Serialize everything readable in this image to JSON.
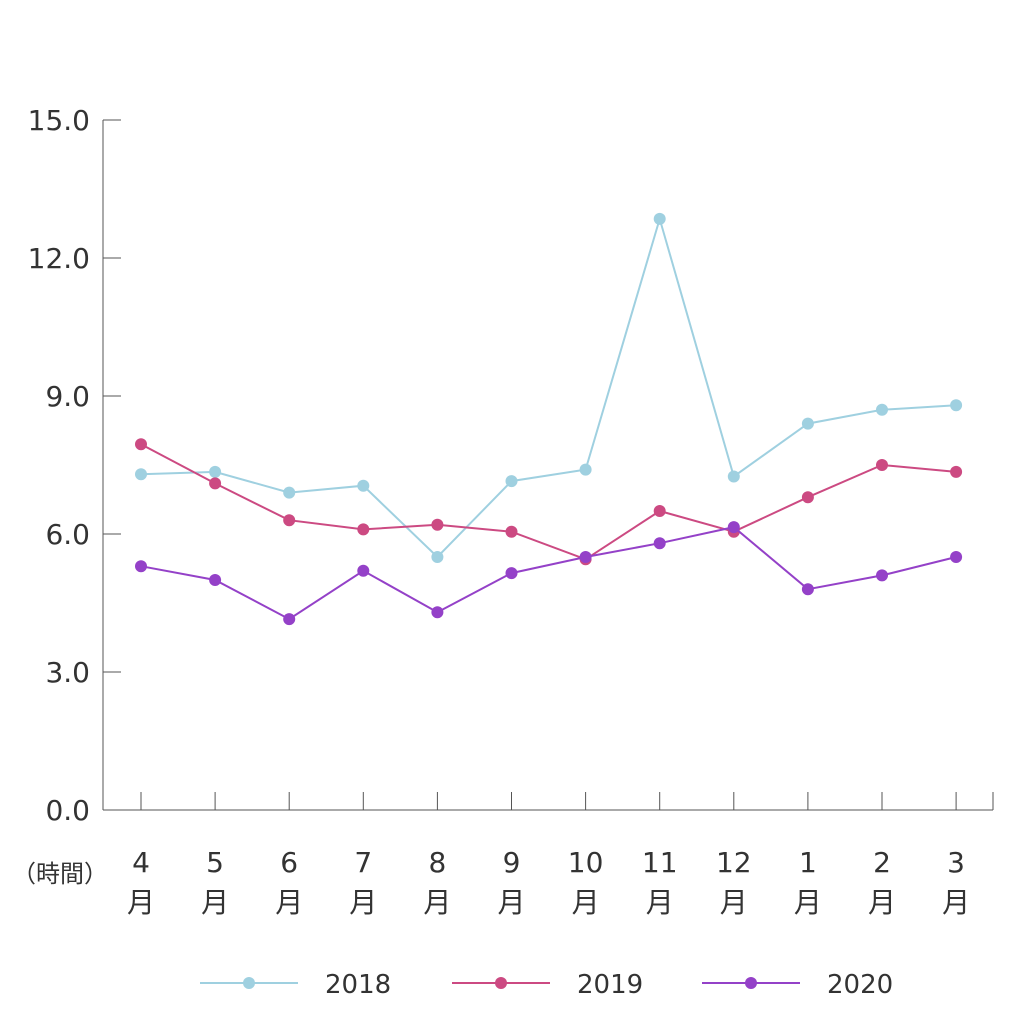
{
  "chart_data": {
    "type": "line",
    "unit_label": "（時間）",
    "categories": [
      {
        "num": "4",
        "suffix": "月"
      },
      {
        "num": "5",
        "suffix": "月"
      },
      {
        "num": "6",
        "suffix": "月"
      },
      {
        "num": "7",
        "suffix": "月"
      },
      {
        "num": "8",
        "suffix": "月"
      },
      {
        "num": "9",
        "suffix": "月"
      },
      {
        "num": "10",
        "suffix": "月"
      },
      {
        "num": "11",
        "suffix": "月"
      },
      {
        "num": "12",
        "suffix": "月"
      },
      {
        "num": "1",
        "suffix": "月"
      },
      {
        "num": "2",
        "suffix": "月"
      },
      {
        "num": "3",
        "suffix": "月"
      }
    ],
    "ylim": [
      0,
      15
    ],
    "yticks": [
      "0.0",
      "3.0",
      "6.0",
      "9.0",
      "12.0",
      "15.0"
    ],
    "legend_position": "bottom",
    "series": [
      {
        "name": "2018",
        "color": "#9fd0e0",
        "values": [
          7.3,
          7.35,
          6.9,
          7.05,
          5.5,
          7.15,
          7.4,
          12.85,
          7.25,
          8.4,
          8.7,
          8.8
        ]
      },
      {
        "name": "2019",
        "color": "#cc4a82",
        "values": [
          7.95,
          7.1,
          6.3,
          6.1,
          6.2,
          6.05,
          5.45,
          6.5,
          6.05,
          6.8,
          7.5,
          7.35
        ]
      },
      {
        "name": "2020",
        "color": "#9441c8",
        "values": [
          5.3,
          5.0,
          4.15,
          5.2,
          4.3,
          5.15,
          5.5,
          5.8,
          6.15,
          4.8,
          5.1,
          5.5
        ]
      }
    ]
  }
}
